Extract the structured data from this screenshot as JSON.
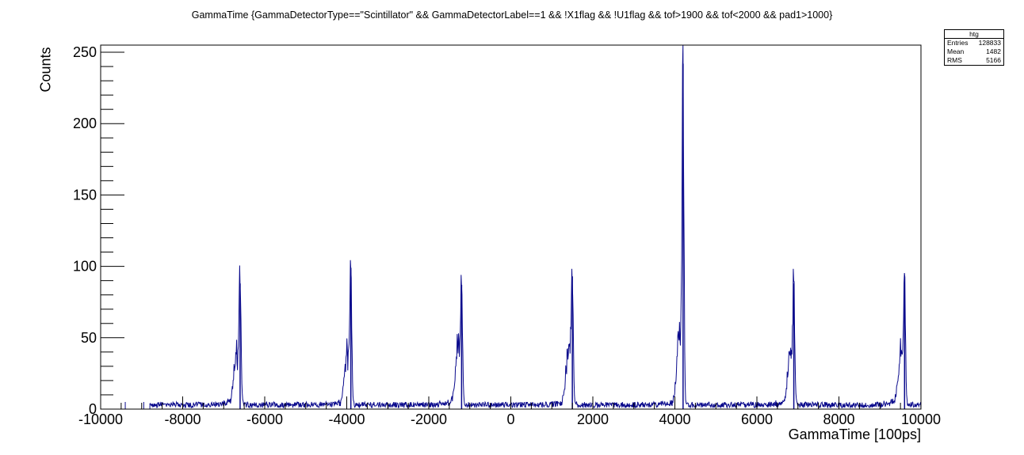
{
  "title": "GammaTime {GammaDetectorType==\"Scintillator\" && GammaDetectorLabel==1 &&  !X1flag && !U1flag && tof>1900 && tof<2000 && pad1>1000}",
  "stats_box": {
    "name": "htg",
    "rows": [
      {
        "label": "Entries",
        "value": "128833"
      },
      {
        "label": "Mean",
        "value": "1482"
      },
      {
        "label": "RMS",
        "value": "5166"
      }
    ]
  },
  "colors": {
    "line": "#0a0a8c",
    "axis": "#000000"
  },
  "chart_data": {
    "type": "line",
    "title": "GammaTime {GammaDetectorType==\"Scintillator\" && GammaDetectorLabel==1 &&  !X1flag && !U1flag && tof>1900 && tof<2000 && pad1>1000}",
    "xlabel": "GammaTime [100ps]",
    "ylabel": "Counts",
    "xlim": [
      -10000,
      10000
    ],
    "ylim": [
      0,
      255
    ],
    "x_ticks": [
      -10000,
      -8000,
      -6000,
      -4000,
      -2000,
      0,
      2000,
      4000,
      6000,
      8000,
      10000
    ],
    "x_tick_labels": [
      "-10000",
      "-8000",
      "-6000",
      "-4000",
      "-2000",
      "0",
      "2000",
      "4000",
      "6000",
      "8000",
      "10000"
    ],
    "y_ticks": [
      0,
      50,
      100,
      150,
      200,
      250
    ],
    "y_tick_labels": [
      "0",
      "50",
      "100",
      "150",
      "200",
      "250"
    ],
    "grid": false,
    "legend": "none",
    "histogram_range": [
      -8800,
      10000
    ],
    "baseline_counts": 3,
    "isolated_counts_x": [
      -9400,
      -8950
    ],
    "peaks": [
      {
        "x": -6600,
        "height": 88,
        "shoulder": 40
      },
      {
        "x": -3900,
        "height": 99,
        "shoulder": 42
      },
      {
        "x": -1200,
        "height": 87,
        "shoulder": 48
      },
      {
        "x": 1500,
        "height": 93,
        "shoulder": 45
      },
      {
        "x": 4200,
        "height": 242,
        "shoulder": 62
      },
      {
        "x": 6900,
        "height": 88,
        "shoulder": 42
      },
      {
        "x": 9600,
        "height": 93,
        "shoulder": 45
      }
    ]
  }
}
